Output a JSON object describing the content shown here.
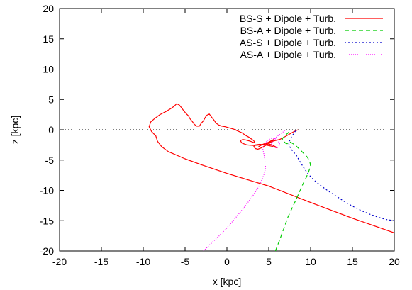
{
  "chart_data": {
    "type": "line",
    "title": "",
    "xlabel": "x [kpc]",
    "ylabel": "z [kpc]",
    "xlim": [
      -20,
      20
    ],
    "ylim": [
      -20,
      20
    ],
    "xticks": [
      -20,
      -15,
      -10,
      -5,
      0,
      5,
      10,
      15,
      20
    ],
    "yticks": [
      -20,
      -15,
      -10,
      -5,
      0,
      5,
      10,
      15,
      20
    ],
    "grid": false,
    "legend_position": "top-right",
    "reference_line": {
      "y": 0,
      "style": "dotted",
      "color": "#000000"
    },
    "series": [
      {
        "name": "BS-S + Dipole + Turb.",
        "color": "#ff0000",
        "dash": "solid",
        "x": [
          20,
          15,
          10,
          5,
          0,
          -3,
          -5,
          -7,
          -7.8,
          -8.3,
          -8.5,
          -9.0,
          -9.3,
          -9.1,
          -8.6,
          -8.0,
          -7.3,
          -6.7,
          -6.3,
          -6.0,
          -5.7,
          -5.4,
          -5.2,
          -4.9,
          -4.6,
          -4.4,
          -4.1,
          -3.9,
          -3.6,
          -3.3,
          -3.1,
          -2.8,
          -2.6,
          -2.4,
          -2.1,
          -1.9,
          -1.6,
          -1.3,
          -1.0,
          -0.6,
          -0.2,
          0.3,
          0.8,
          1.3,
          1.8,
          2.2,
          2.6,
          2.9,
          3.2,
          3.3,
          3.2,
          2.8,
          2.3,
          1.9,
          1.6,
          1.8,
          2.4,
          3.2,
          4.0,
          4.8,
          5.3,
          5.6,
          5.5,
          5.1,
          4.6,
          4.1,
          3.7,
          3.4,
          3.2,
          3.4,
          3.9,
          4.6,
          5.3,
          5.8,
          6.0,
          5.8,
          5.4,
          4.9,
          4.4,
          4.0,
          3.8,
          3.9,
          4.3,
          4.9,
          5.5,
          6.0,
          6.3,
          6.6,
          7.0,
          7.5,
          8.0,
          8.5
        ],
        "y": [
          -17,
          -14.6,
          -12,
          -9.3,
          -7.2,
          -5.8,
          -4.8,
          -3.6,
          -2.8,
          -1.9,
          -1.0,
          -0.3,
          0.5,
          1.3,
          1.9,
          2.5,
          3.0,
          3.5,
          3.9,
          4.3,
          4.1,
          3.6,
          3.2,
          2.7,
          2.3,
          1.8,
          1.3,
          0.9,
          0.6,
          0.6,
          1.0,
          1.5,
          2.0,
          2.4,
          2.6,
          2.2,
          1.7,
          1.1,
          0.8,
          0.6,
          0.5,
          0.3,
          0.1,
          -0.2,
          -0.5,
          -0.9,
          -1.2,
          -1.5,
          -1.8,
          -2.0,
          -2.1,
          -1.9,
          -1.7,
          -1.6,
          -1.8,
          -2.2,
          -2.5,
          -2.6,
          -2.5,
          -2.2,
          -1.8,
          -1.6,
          -1.8,
          -2.2,
          -2.6,
          -3.0,
          -3.2,
          -3.1,
          -2.8,
          -2.5,
          -2.4,
          -2.5,
          -2.7,
          -2.9,
          -3.0,
          -2.8,
          -2.5,
          -2.3,
          -2.4,
          -2.6,
          -2.8,
          -2.7,
          -2.4,
          -2.1,
          -1.9,
          -1.7,
          -1.6,
          -1.4,
          -1.1,
          -0.7,
          -0.3,
          0.0
        ]
      },
      {
        "name": "BS-A + Dipole + Turb.",
        "color": "#00cc00",
        "dash": "6,4",
        "x": [
          5.8,
          6.3,
          6.8,
          7.3,
          7.9,
          8.5,
          9.0,
          9.5,
          9.8,
          10.0,
          9.9,
          9.6,
          9.1,
          8.6,
          8.2,
          7.8,
          7.5,
          7.3,
          7.2,
          7.0,
          6.8,
          6.6,
          6.8,
          7.1,
          7.4
        ],
        "y": [
          -20,
          -18.2,
          -16.3,
          -14.4,
          -12.6,
          -10.8,
          -9.2,
          -7.8,
          -6.8,
          -6.0,
          -5.2,
          -4.5,
          -3.8,
          -3.1,
          -2.6,
          -2.2,
          -2.0,
          -2.1,
          -2.3,
          -2.2,
          -1.9,
          -1.5,
          -1.2,
          -0.8,
          -0.4
        ]
      },
      {
        "name": "AS-S + Dipole + Turb.",
        "color": "#0000cc",
        "dash": "2,3",
        "x": [
          20,
          19.0,
          18.0,
          17.0,
          16.0,
          15.0,
          14.0,
          13.0,
          12.0,
          11.2,
          10.4,
          9.7,
          9.2,
          8.8,
          8.5,
          8.3,
          8.1,
          7.9,
          7.7,
          7.5,
          7.4,
          7.5,
          7.7,
          8.0,
          8.3
        ],
        "y": [
          -15.0,
          -14.8,
          -14.4,
          -13.9,
          -13.3,
          -12.6,
          -11.8,
          -10.9,
          -10.0,
          -9.2,
          -8.3,
          -7.3,
          -6.3,
          -5.4,
          -4.7,
          -4.2,
          -3.9,
          -3.6,
          -3.2,
          -2.8,
          -2.3,
          -1.8,
          -1.2,
          -0.6,
          0.0
        ]
      },
      {
        "name": "AS-A + Dipole + Turb.",
        "color": "#ff00ff",
        "dash": "1,2",
        "x": [
          -2.8,
          -2.0,
          -1.0,
          0.0,
          1.0,
          2.0,
          3.0,
          3.7,
          4.2,
          4.5,
          4.6,
          4.6,
          4.5,
          4.4,
          4.3,
          4.4,
          4.7,
          5.0,
          5.4,
          5.8,
          6.1,
          6.3,
          6.2,
          5.9,
          5.5,
          5.3,
          5.5,
          6.0,
          6.6,
          7.0
        ],
        "y": [
          -20,
          -18.9,
          -17.6,
          -16.2,
          -14.6,
          -12.9,
          -11.1,
          -9.6,
          -8.2,
          -7.1,
          -6.2,
          -5.4,
          -4.6,
          -3.9,
          -3.2,
          -2.6,
          -2.0,
          -1.6,
          -1.4,
          -1.5,
          -1.8,
          -2.3,
          -2.8,
          -3.0,
          -2.8,
          -2.4,
          -1.8,
          -1.1,
          -0.5,
          0.0
        ]
      }
    ]
  }
}
